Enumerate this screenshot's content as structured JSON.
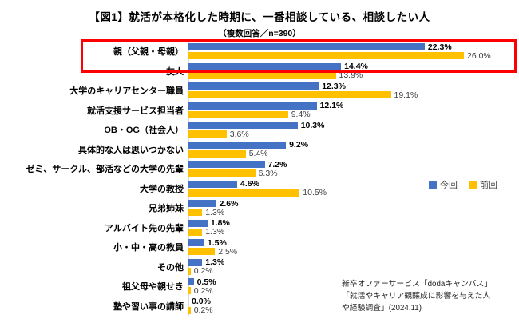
{
  "title": "【図1】就活が本格化した時期に、一番相談している、相談したい人",
  "subtitle": "（複数回答／n=390）",
  "colors": {
    "current_series": "#4472C4",
    "previous_series": "#FFC000",
    "highlight_border": "#FF0000"
  },
  "legend": {
    "current_label": "今回",
    "previous_label": "前回"
  },
  "source_lines": [
    "新卒オファーサービス「dodaキャンパス」",
    "「就活やキャリア観醸成に影響を与えた人",
    "や経験調査」(2024.11)"
  ],
  "chart_data": {
    "type": "bar",
    "orientation": "horizontal",
    "title": "【図1】就活が本格化した時期に、一番相談している、相談したい人",
    "subtitle": "（複数回答／n=390）",
    "value_suffix": "%",
    "xlim": [
      0,
      30
    ],
    "grid": false,
    "legend_position": "middle-right",
    "highlighted_category": "親（父親・母親）",
    "categories": [
      "親（父親・母親）",
      "友人",
      "大学のキャリアセンター職員",
      "就活支援サービス担当者",
      "OB・OG（社会人）",
      "具体的な人は思いつかない",
      "ゼミ、サークル、部活などの大学の先輩",
      "大学の教授",
      "兄弟姉妹",
      "アルバイト先の先輩",
      "小・中・高の教員",
      "その他",
      "祖父母や親せき",
      "塾や習い事の講師"
    ],
    "series": [
      {
        "id": "current",
        "name": "今回",
        "color": "#4472C4",
        "values": [
          22.3,
          14.4,
          12.3,
          12.1,
          10.3,
          9.2,
          7.2,
          4.6,
          2.6,
          1.8,
          1.5,
          1.3,
          0.5,
          0.0
        ]
      },
      {
        "id": "previous",
        "name": "前回",
        "color": "#FFC000",
        "values": [
          26.0,
          13.9,
          19.1,
          9.4,
          3.6,
          5.4,
          6.3,
          10.5,
          1.3,
          1.3,
          2.5,
          0.2,
          0.2,
          0.2
        ]
      }
    ]
  }
}
